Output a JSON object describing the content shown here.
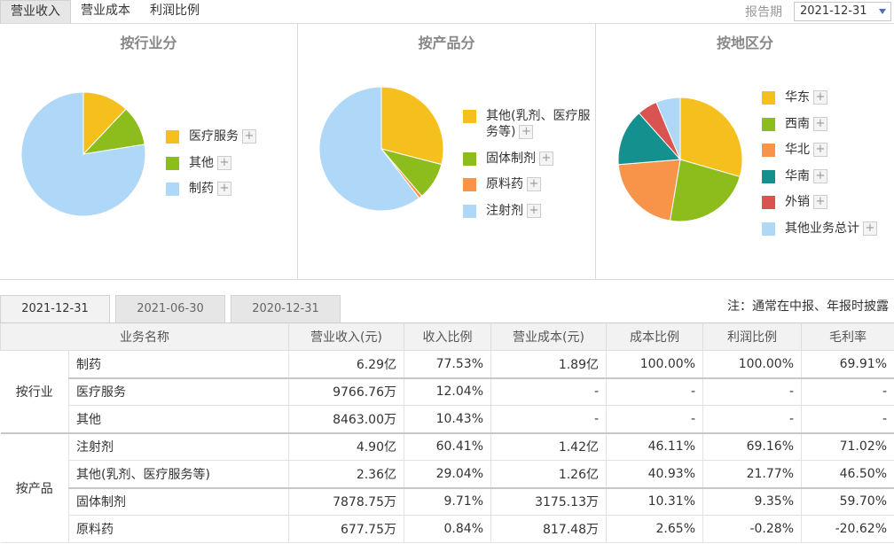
{
  "top_tabs": [
    "营业收入",
    "营业成本",
    "利润比例"
  ],
  "period": {
    "label": "报告期",
    "value": "2021-12-31"
  },
  "colors": {
    "yellow": "#f5c01d",
    "green": "#8cbd1c",
    "orange": "#f8934a",
    "teal": "#14918e",
    "red": "#d95350",
    "lightblue": "#afd8f8"
  },
  "chart_data": [
    {
      "type": "pie",
      "title": "按行业分",
      "slices": [
        {
          "name": "医疗服务",
          "value": 12.04,
          "color": "#f5c01d"
        },
        {
          "name": "其他",
          "value": 10.43,
          "color": "#8cbd1c"
        },
        {
          "name": "制药",
          "value": 77.53,
          "color": "#afd8f8"
        }
      ]
    },
    {
      "type": "pie",
      "title": "按产品分",
      "slices": [
        {
          "name": "其他(乳剂、医疗服务等)",
          "value": 29.04,
          "color": "#f5c01d"
        },
        {
          "name": "固体制剂",
          "value": 9.71,
          "color": "#8cbd1c"
        },
        {
          "name": "原料药",
          "value": 0.84,
          "color": "#f8934a"
        },
        {
          "name": "注射剂",
          "value": 60.41,
          "color": "#afd8f8"
        }
      ]
    },
    {
      "type": "pie",
      "title": "按地区分",
      "slices": [
        {
          "name": "华东",
          "value": 28,
          "color": "#f5c01d"
        },
        {
          "name": "西南",
          "value": 22,
          "color": "#8cbd1c"
        },
        {
          "name": "华北",
          "value": 20,
          "color": "#f8934a"
        },
        {
          "name": "华南",
          "value": 14,
          "color": "#14918e"
        },
        {
          "name": "外销",
          "value": 5,
          "color": "#d95350"
        },
        {
          "name": "其他业务总计",
          "value": 6,
          "color": "#afd8f8"
        }
      ]
    }
  ],
  "period_tabs": [
    "2021-12-31",
    "2021-06-30",
    "2020-12-31"
  ],
  "note": "注：通常在中报、年报时披露",
  "table": {
    "headers": [
      "业务名称",
      "营业收入(元)",
      "收入比例",
      "营业成本(元)",
      "成本比例",
      "利润比例",
      "毛利率"
    ],
    "groups": [
      {
        "name": "按行业",
        "rows": [
          [
            "制药",
            "6.29亿",
            "77.53%",
            "1.89亿",
            "100.00%",
            "100.00%",
            "69.91%"
          ],
          [
            "医疗服务",
            "9766.76万",
            "12.04%",
            "-",
            "-",
            "-",
            "-"
          ],
          [
            "其他",
            "8463.00万",
            "10.43%",
            "-",
            "-",
            "-",
            "-"
          ]
        ]
      },
      {
        "name": "按产品",
        "rows": [
          [
            "注射剂",
            "4.90亿",
            "60.41%",
            "1.42亿",
            "46.11%",
            "69.16%",
            "71.02%"
          ],
          [
            "其他(乳剂、医疗服务等)",
            "2.36亿",
            "29.04%",
            "1.26亿",
            "40.93%",
            "21.77%",
            "46.50%"
          ],
          [
            "固体制剂",
            "7878.75万",
            "9.71%",
            "3175.13万",
            "10.31%",
            "9.35%",
            "59.70%"
          ],
          [
            "原料药",
            "677.75万",
            "0.84%",
            "817.48万",
            "2.65%",
            "-0.28%",
            "-20.62%"
          ]
        ]
      }
    ]
  }
}
